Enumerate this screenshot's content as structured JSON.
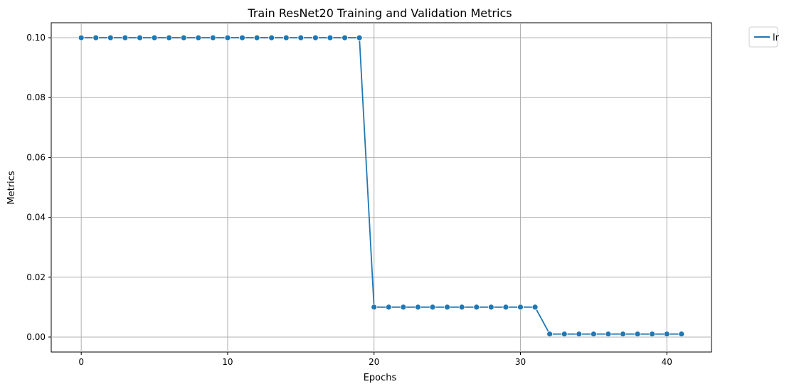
{
  "chart_data": {
    "type": "line",
    "title": "Train ResNet20 Training and Validation Metrics",
    "xlabel": "Epochs",
    "ylabel": "Metrics",
    "xlim": [
      -2.05,
      43.05
    ],
    "ylim": [
      -0.005,
      0.105
    ],
    "x_ticks": [
      0,
      10,
      20,
      30,
      40
    ],
    "y_ticks": [
      0.0,
      0.02,
      0.04,
      0.06,
      0.08,
      0.1
    ],
    "grid": true,
    "legend_position": "outside-top-right",
    "series": [
      {
        "name": "lr",
        "color": "#1f77b4",
        "marker": "circle",
        "x": [
          0,
          1,
          2,
          3,
          4,
          5,
          6,
          7,
          8,
          9,
          10,
          11,
          12,
          13,
          14,
          15,
          16,
          17,
          18,
          19,
          20,
          21,
          22,
          23,
          24,
          25,
          26,
          27,
          28,
          29,
          30,
          31,
          32,
          33,
          34,
          35,
          36,
          37,
          38,
          39,
          40,
          41
        ],
        "values": [
          0.1,
          0.1,
          0.1,
          0.1,
          0.1,
          0.1,
          0.1,
          0.1,
          0.1,
          0.1,
          0.1,
          0.1,
          0.1,
          0.1,
          0.1,
          0.1,
          0.1,
          0.1,
          0.1,
          0.1,
          0.01,
          0.01,
          0.01,
          0.01,
          0.01,
          0.01,
          0.01,
          0.01,
          0.01,
          0.01,
          0.01,
          0.01,
          0.001,
          0.001,
          0.001,
          0.001,
          0.001,
          0.001,
          0.001,
          0.001,
          0.001,
          0.001
        ]
      }
    ]
  }
}
